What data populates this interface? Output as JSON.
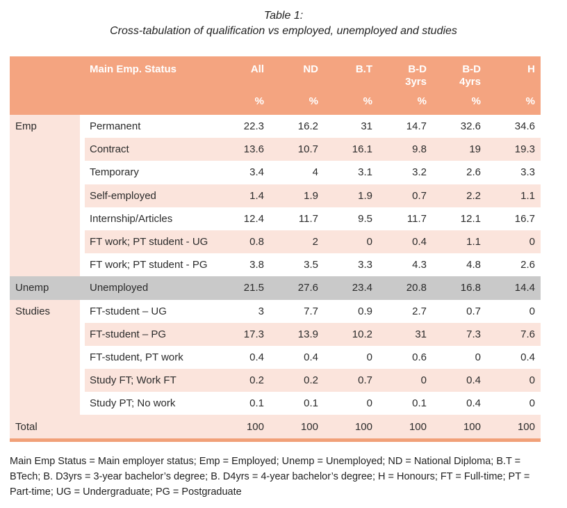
{
  "title": "Table 1:",
  "subtitle": "Cross-tabulation of qualification vs employed, unemployed and studies",
  "colors": {
    "header_orange": "#F4A480",
    "row_pink": "#FBE4DC",
    "row_gray": "#C9C9C9",
    "bottom_bar_orange": "#F1A078"
  },
  "table": {
    "header": {
      "status_label": "Main Emp. Status",
      "columns": [
        {
          "lines": [
            "All"
          ]
        },
        {
          "lines": [
            "ND"
          ]
        },
        {
          "lines": [
            "B.T"
          ]
        },
        {
          "lines": [
            "B-D",
            "3yrs"
          ]
        },
        {
          "lines": [
            "B-D",
            "4yrs"
          ]
        },
        {
          "lines": [
            "H"
          ]
        }
      ],
      "unit_row": [
        "%",
        "%",
        "%",
        "%",
        "%",
        "%"
      ]
    },
    "rows": [
      {
        "group": "Emp",
        "label": "Permanent",
        "values": [
          "22.3",
          "16.2",
          "31",
          "14.7",
          "32.6",
          "34.6"
        ],
        "bg": "white"
      },
      {
        "group": "",
        "label": "Contract",
        "values": [
          "13.6",
          "10.7",
          "16.1",
          "9.8",
          "19",
          "19.3"
        ],
        "bg": "pink"
      },
      {
        "group": "",
        "label": "Temporary",
        "values": [
          "3.4",
          "4",
          "3.1",
          "3.2",
          "2.6",
          "3.3"
        ],
        "bg": "white"
      },
      {
        "group": "",
        "label": "Self-employed",
        "values": [
          "1.4",
          "1.9",
          "1.9",
          "0.7",
          "2.2",
          "1.1"
        ],
        "bg": "pink"
      },
      {
        "group": "",
        "label": "Internship/Articles",
        "values": [
          "12.4",
          "11.7",
          "9.5",
          "11.7",
          "12.1",
          "16.7"
        ],
        "bg": "white"
      },
      {
        "group": "",
        "label": "FT work; PT student - UG",
        "values": [
          "0.8",
          "2",
          "0",
          "0.4",
          "1.1",
          "0"
        ],
        "bg": "pink"
      },
      {
        "group": "",
        "label": "FT work; PT student - PG",
        "values": [
          "3.8",
          "3.5",
          "3.3",
          "4.3",
          "4.8",
          "2.6"
        ],
        "bg": "white"
      },
      {
        "group": "Unemp",
        "label": "Unemployed",
        "values": [
          "21.5",
          "27.6",
          "23.4",
          "20.8",
          "16.8",
          "14.4"
        ],
        "bg": "gray"
      },
      {
        "group": "Studies",
        "label": "FT-student – UG",
        "values": [
          "3",
          "7.7",
          "0.9",
          "2.7",
          "0.7",
          "0"
        ],
        "bg": "white"
      },
      {
        "group": "",
        "label": "FT-student – PG",
        "values": [
          "17.3",
          "13.9",
          "10.2",
          "31",
          "7.3",
          "7.6"
        ],
        "bg": "pink"
      },
      {
        "group": "",
        "label": "FT-student, PT work",
        "values": [
          "0.4",
          "0.4",
          "0",
          "0.6",
          "0",
          "0.4"
        ],
        "bg": "white"
      },
      {
        "group": "",
        "label": "Study FT; Work FT",
        "values": [
          "0.2",
          "0.2",
          "0.7",
          "0",
          "0.4",
          "0"
        ],
        "bg": "pink"
      },
      {
        "group": "",
        "label": "Study PT; No work",
        "values": [
          "0.1",
          "0.1",
          "0",
          "0.1",
          "0.4",
          "0"
        ],
        "bg": "white"
      },
      {
        "group": "Total",
        "label": "",
        "values": [
          "100",
          "100",
          "100",
          "100",
          "100",
          "100"
        ],
        "bg": "total"
      }
    ]
  },
  "footnote": "Main Emp Status = Main employer status; Emp = Employed; Unemp = Unemployed; ND = National Diploma; B.T = BTech; B. D3yrs = 3-year bachelor’s degree; B. D4yrs = 4-year bachelor’s degree; H = Honours; FT = Full-time; PT = Part-time; UG = Undergraduate; PG = Postgraduate"
}
